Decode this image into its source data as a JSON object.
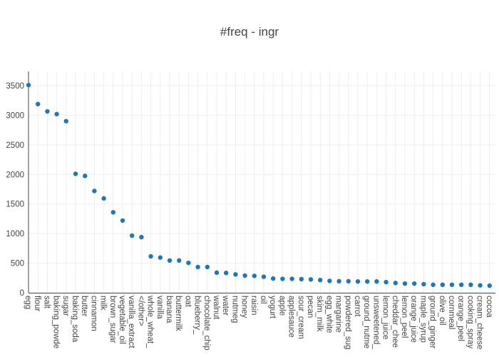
{
  "chart_data": {
    "type": "scatter",
    "title": "#freq - ingr",
    "xlabel": "",
    "ylabel": "",
    "ylim": [
      0,
      3750
    ],
    "yticks": [
      0,
      500,
      1000,
      1500,
      2000,
      2500,
      3000,
      3500
    ],
    "grid": true,
    "marker_color": "#1f77b4",
    "categories": [
      "egg",
      "flour",
      "salt",
      "baking_powde",
      "sugar",
      "baking_soda",
      "butter",
      "cinnamon",
      "milk",
      "brown_sugar",
      "vegetable_oil",
      "vanilla_extract",
      "</other>",
      "whole_wheat_",
      "vanilla",
      "banana",
      "buttermilk",
      "oat",
      "blueberry_",
      "chocolate_chip",
      "walnut",
      "water",
      "nutmeg",
      "honey",
      "raisin",
      "oil",
      "yogurt",
      "apple",
      "applesauce",
      "sour_cream",
      "pecan",
      "skim_milk",
      "egg_white",
      "margarine",
      "powdered_sug",
      "carrot",
      "ground_nutme",
      "unsweetened_",
      "lemon_juice",
      "cheddar_chee",
      "lemon_peel",
      "orange_juice",
      "maple_syrup",
      "ground_ginger",
      "olive_oil",
      "cornmeal",
      "orange_peel",
      "cooking_spray",
      "cream_cheese",
      "cocoa"
    ],
    "values": [
      3510,
      3190,
      3065,
      3020,
      2900,
      2010,
      1975,
      1720,
      1595,
      1360,
      1220,
      965,
      940,
      615,
      595,
      545,
      545,
      505,
      435,
      435,
      340,
      335,
      310,
      290,
      285,
      270,
      240,
      235,
      235,
      230,
      225,
      215,
      200,
      195,
      195,
      190,
      190,
      190,
      180,
      165,
      155,
      155,
      145,
      135,
      135,
      135,
      135,
      135,
      125,
      120
    ]
  }
}
